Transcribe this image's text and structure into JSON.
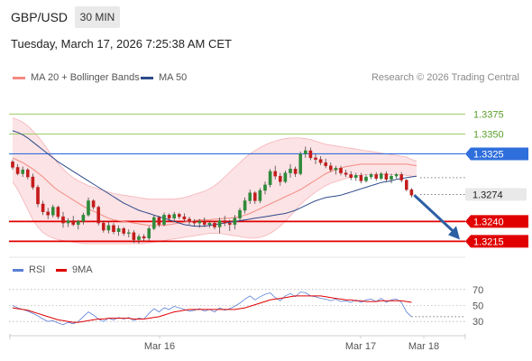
{
  "header": {
    "symbol": "GBP/USD",
    "timeframe": "30 MIN",
    "datetime": "Tuesday, March 17, 2026 7:25:38 AM CET"
  },
  "legend": {
    "items": [
      {
        "label": "MA 20 + Bollinger Bands",
        "color": "#f28b82"
      },
      {
        "label": "MA 50",
        "color": "#2e4a8a"
      }
    ],
    "credit": "Research © 2026 Trading Central"
  },
  "rsi_legend": {
    "items": [
      {
        "label": "RSI",
        "color": "#5b7fd6"
      },
      {
        "label": "9MA",
        "color": "#e00000"
      }
    ]
  },
  "chart_data": [
    {
      "type": "candlestick",
      "ylim": [
        1.3195,
        1.3405
      ],
      "x_labels": [
        "Mar 16",
        "Mar 17",
        "Mar 18"
      ],
      "levels": [
        {
          "value": 1.3375,
          "label": "1.3375",
          "style": "green-line"
        },
        {
          "value": 1.335,
          "label": "1.3350",
          "style": "green-line"
        },
        {
          "value": 1.3325,
          "label": "1.3325",
          "style": "blue-badge"
        },
        {
          "value": 1.3274,
          "label": "1.3274",
          "style": "current-price"
        },
        {
          "value": 1.324,
          "label": "1.3240",
          "style": "red-badge"
        },
        {
          "value": 1.3215,
          "label": "1.3215",
          "style": "red-badge"
        }
      ],
      "projection": {
        "from": 1.3273,
        "to": 1.3215
      },
      "ma20": [
        1.332,
        1.3317,
        1.3314,
        1.331,
        1.3306,
        1.3301,
        1.3296,
        1.329,
        1.3284,
        1.3279,
        1.3275,
        1.3271,
        1.3267,
        1.3263,
        1.3259,
        1.3256,
        1.3253,
        1.325,
        1.3247,
        1.3244,
        1.3242,
        1.3241,
        1.324,
        1.3239,
        1.3238,
        1.3237,
        1.3236,
        1.3235,
        1.3235,
        1.3235,
        1.3235,
        1.3236,
        1.3237,
        1.3238,
        1.3239,
        1.324,
        1.3241,
        1.3242,
        1.3242,
        1.3242,
        1.3243,
        1.3243,
        1.3244,
        1.3244,
        1.3245,
        1.3246,
        1.3248,
        1.325,
        1.3253,
        1.3256,
        1.3259,
        1.3262,
        1.3265,
        1.3268,
        1.3271,
        1.3274,
        1.3277,
        1.328,
        1.3284,
        1.3288,
        1.3292,
        1.3296,
        1.33,
        1.3303,
        1.3305,
        1.3307,
        1.3309,
        1.331,
        1.3311,
        1.3312,
        1.3312,
        1.3312,
        1.3312,
        1.3312,
        1.3312,
        1.3312,
        1.3312,
        1.3312,
        1.3312,
        1.3311,
        1.331
      ],
      "ma50": [
        1.3354,
        1.3352,
        1.3349,
        1.3345,
        1.334,
        1.3335,
        1.333,
        1.3325,
        1.332,
        1.3315,
        1.3311,
        1.3307,
        1.3303,
        1.3299,
        1.3295,
        1.3291,
        1.3287,
        1.3283,
        1.3279,
        1.3275,
        1.3271,
        1.3267,
        1.3263,
        1.326,
        1.3257,
        1.3254,
        1.3252,
        1.325,
        1.3248,
        1.3246,
        1.3244,
        1.3242,
        1.324,
        1.3238,
        1.3236,
        1.3235,
        1.3234,
        1.3234,
        1.3234,
        1.3235,
        1.3236,
        1.3237,
        1.3238,
        1.3239,
        1.324,
        1.3241,
        1.3242,
        1.3243,
        1.3244,
        1.3245,
        1.3246,
        1.3247,
        1.3248,
        1.3249,
        1.325,
        1.3252,
        1.3254,
        1.3257,
        1.326,
        1.3263,
        1.3266,
        1.3268,
        1.327,
        1.3271,
        1.3272,
        1.3273,
        1.3275,
        1.3277,
        1.3279,
        1.3281,
        1.3283,
        1.3285,
        1.3287,
        1.3289,
        1.329,
        1.3291,
        1.3293,
        1.3294,
        1.3295,
        1.3296,
        1.3297
      ],
      "bb_upper": [
        1.337,
        1.3368,
        1.3365,
        1.336,
        1.3354,
        1.3347,
        1.3339,
        1.333,
        1.3321,
        1.3313,
        1.3306,
        1.33,
        1.3295,
        1.3291,
        1.3288,
        1.3285,
        1.3283,
        1.3281,
        1.3279,
        1.3277,
        1.3275,
        1.3274,
        1.3273,
        1.3272,
        1.3271,
        1.327,
        1.3269,
        1.3268,
        1.3268,
        1.3268,
        1.3268,
        1.3268,
        1.3268,
        1.3269,
        1.327,
        1.3272,
        1.3274,
        1.3276,
        1.3278,
        1.3281,
        1.3285,
        1.329,
        1.3296,
        1.3302,
        1.3308,
        1.3314,
        1.332,
        1.3325,
        1.3329,
        1.3333,
        1.3336,
        1.3339,
        1.3341,
        1.3343,
        1.3344,
        1.3345,
        1.3345,
        1.3345,
        1.3344,
        1.3343,
        1.3341,
        1.3339,
        1.3337,
        1.3336,
        1.3335,
        1.3334,
        1.3333,
        1.3332,
        1.3331,
        1.333,
        1.3329,
        1.3328,
        1.3327,
        1.3326,
        1.3325,
        1.3324,
        1.3323,
        1.3322,
        1.3321,
        1.3318,
        1.3316
      ],
      "bb_lower": [
        1.329,
        1.328,
        1.3268,
        1.3255,
        1.3242,
        1.3233,
        1.3226,
        1.3222,
        1.3219,
        1.3217,
        1.3216,
        1.3215,
        1.3214,
        1.3213,
        1.3212,
        1.3212,
        1.3212,
        1.3212,
        1.3212,
        1.3212,
        1.3212,
        1.3212,
        1.3212,
        1.3212,
        1.3212,
        1.3212,
        1.3212,
        1.3213,
        1.3214,
        1.3215,
        1.3216,
        1.3217,
        1.3218,
        1.3219,
        1.322,
        1.3221,
        1.3222,
        1.3223,
        1.3224,
        1.3225,
        1.3225,
        1.3225,
        1.3224,
        1.3223,
        1.3222,
        1.3221,
        1.322,
        1.3219,
        1.3219,
        1.322,
        1.3222,
        1.3225,
        1.3229,
        1.3234,
        1.324,
        1.3247,
        1.3254,
        1.3261,
        1.3267,
        1.3272,
        1.3277,
        1.3281,
        1.3285,
        1.3288,
        1.329,
        1.3292,
        1.3294,
        1.3296,
        1.3297,
        1.3298,
        1.3299,
        1.3299,
        1.3299,
        1.3299,
        1.3299,
        1.3299,
        1.3299,
        1.3299,
        1.3298,
        1.3297,
        1.3296
      ],
      "ohlc": [
        [
          1.3315,
          1.3318,
          1.3305,
          1.3308
        ],
        [
          1.3308,
          1.3312,
          1.3298,
          1.33
        ],
        [
          1.33,
          1.3309,
          1.3296,
          1.3305
        ],
        [
          1.3305,
          1.3307,
          1.3293,
          1.3296
        ],
        [
          1.3296,
          1.33,
          1.328,
          1.3283
        ],
        [
          1.3283,
          1.3286,
          1.3258,
          1.3262
        ],
        [
          1.3262,
          1.3266,
          1.3248,
          1.3252
        ],
        [
          1.3252,
          1.3257,
          1.3243,
          1.3248
        ],
        [
          1.3248,
          1.3261,
          1.3245,
          1.3258
        ],
        [
          1.3258,
          1.326,
          1.3243,
          1.3246
        ],
        [
          1.3246,
          1.3252,
          1.3232,
          1.3238
        ],
        [
          1.3238,
          1.3244,
          1.3233,
          1.3241
        ],
        [
          1.3241,
          1.3247,
          1.3234,
          1.3236
        ],
        [
          1.3236,
          1.3242,
          1.323,
          1.324
        ],
        [
          1.324,
          1.3251,
          1.3236,
          1.3248
        ],
        [
          1.3248,
          1.327,
          1.3246,
          1.3266
        ],
        [
          1.3266,
          1.3268,
          1.3255,
          1.3258
        ],
        [
          1.3258,
          1.326,
          1.3235,
          1.3238
        ],
        [
          1.3238,
          1.3241,
          1.3226,
          1.3229
        ],
        [
          1.3229,
          1.324,
          1.3225,
          1.3235
        ],
        [
          1.3235,
          1.3238,
          1.3224,
          1.3227
        ],
        [
          1.3227,
          1.3235,
          1.3222,
          1.3231
        ],
        [
          1.3231,
          1.3233,
          1.3222,
          1.3225
        ],
        [
          1.3225,
          1.323,
          1.322,
          1.3226
        ],
        [
          1.3226,
          1.3229,
          1.3213,
          1.3217
        ],
        [
          1.3217,
          1.3224,
          1.3212,
          1.3221
        ],
        [
          1.3221,
          1.3224,
          1.3215,
          1.3219
        ],
        [
          1.3219,
          1.3234,
          1.3216,
          1.3231
        ],
        [
          1.3231,
          1.3248,
          1.3229,
          1.3245
        ],
        [
          1.3245,
          1.3247,
          1.3233,
          1.3236
        ],
        [
          1.3236,
          1.3251,
          1.3234,
          1.3248
        ],
        [
          1.3248,
          1.325,
          1.3241,
          1.3244
        ],
        [
          1.3244,
          1.3252,
          1.324,
          1.3249
        ],
        [
          1.3249,
          1.3251,
          1.3243,
          1.3246
        ],
        [
          1.3246,
          1.325,
          1.324,
          1.3243
        ],
        [
          1.3243,
          1.3246,
          1.3236,
          1.324
        ],
        [
          1.324,
          1.3243,
          1.3234,
          1.3238
        ],
        [
          1.3238,
          1.3243,
          1.3232,
          1.324
        ],
        [
          1.324,
          1.3245,
          1.3233,
          1.3236
        ],
        [
          1.3236,
          1.324,
          1.3232,
          1.3238
        ],
        [
          1.3238,
          1.324,
          1.323,
          1.3233
        ],
        [
          1.3233,
          1.3245,
          1.3225,
          1.3241
        ],
        [
          1.3241,
          1.3247,
          1.3234,
          1.3238
        ],
        [
          1.3238,
          1.3242,
          1.3228,
          1.3236
        ],
        [
          1.3236,
          1.3248,
          1.323,
          1.3244
        ],
        [
          1.3244,
          1.3257,
          1.324,
          1.3254
        ],
        [
          1.3254,
          1.327,
          1.325,
          1.3266
        ],
        [
          1.3266,
          1.328,
          1.3262,
          1.3276
        ],
        [
          1.3276,
          1.3278,
          1.3262,
          1.3266
        ],
        [
          1.3266,
          1.3282,
          1.3263,
          1.3279
        ],
        [
          1.3279,
          1.329,
          1.3274,
          1.3286
        ],
        [
          1.3286,
          1.3306,
          1.3283,
          1.3303
        ],
        [
          1.3303,
          1.331,
          1.3293,
          1.3297
        ],
        [
          1.3297,
          1.3301,
          1.3285,
          1.329
        ],
        [
          1.329,
          1.3304,
          1.3288,
          1.3301
        ],
        [
          1.3301,
          1.3312,
          1.3295,
          1.3306
        ],
        [
          1.3306,
          1.3309,
          1.3296,
          1.33
        ],
        [
          1.33,
          1.3328,
          1.3298,
          1.3325
        ],
        [
          1.3325,
          1.3334,
          1.332,
          1.3329
        ],
        [
          1.3329,
          1.3333,
          1.3317,
          1.332
        ],
        [
          1.332,
          1.3325,
          1.3312,
          1.3318
        ],
        [
          1.3318,
          1.3322,
          1.3311,
          1.3314
        ],
        [
          1.3314,
          1.3319,
          1.3307,
          1.331
        ],
        [
          1.331,
          1.3314,
          1.3302,
          1.3305
        ],
        [
          1.3305,
          1.331,
          1.3299,
          1.3307
        ],
        [
          1.3307,
          1.331,
          1.3298,
          1.3301
        ],
        [
          1.3301,
          1.3305,
          1.3296,
          1.3299
        ],
        [
          1.3299,
          1.3303,
          1.3292,
          1.3295
        ],
        [
          1.3295,
          1.3301,
          1.3291,
          1.3298
        ],
        [
          1.3298,
          1.3301,
          1.3288,
          1.3291
        ],
        [
          1.3291,
          1.3299,
          1.3289,
          1.3296
        ],
        [
          1.3296,
          1.3301,
          1.3293,
          1.3299
        ],
        [
          1.3299,
          1.3302,
          1.3291,
          1.3294
        ],
        [
          1.3294,
          1.3302,
          1.3292,
          1.33
        ],
        [
          1.33,
          1.3303,
          1.329,
          1.3293
        ],
        [
          1.3293,
          1.33,
          1.3288,
          1.3297
        ],
        [
          1.3297,
          1.3301,
          1.3294,
          1.3299
        ],
        [
          1.3299,
          1.3302,
          1.3289,
          1.3292
        ],
        [
          1.3292,
          1.3293,
          1.3278,
          1.328
        ],
        [
          1.328,
          1.3282,
          1.327,
          1.3273
        ]
      ]
    },
    {
      "type": "line",
      "series": [
        {
          "name": "RSI"
        },
        {
          "name": "9MA"
        }
      ],
      "ylim": [
        20,
        80
      ],
      "y_ticks": [
        70,
        50,
        30
      ],
      "rsi": [
        50,
        47,
        45,
        43,
        40,
        37,
        33,
        30,
        31,
        28,
        26,
        29,
        27,
        30,
        36,
        42,
        38,
        33,
        30,
        34,
        32,
        35,
        33,
        35,
        31,
        34,
        33,
        40,
        46,
        42,
        47,
        45,
        49,
        47,
        45,
        43,
        44,
        46,
        43,
        45,
        42,
        47,
        44,
        46,
        49,
        53,
        58,
        62,
        57,
        61,
        64,
        66,
        60,
        56,
        62,
        65,
        61,
        67,
        66,
        62,
        61,
        59,
        58,
        56,
        58,
        55,
        56,
        54,
        57,
        54,
        57,
        58,
        55,
        59,
        54,
        57,
        58,
        54,
        42,
        36
      ],
      "rsi_ma9": [
        47,
        46,
        45,
        44,
        42,
        40,
        38,
        36,
        34,
        32,
        31,
        30,
        29,
        29,
        30,
        31,
        32,
        33,
        33,
        34,
        34,
        34,
        34,
        34,
        33,
        33,
        33,
        34,
        35,
        36,
        38,
        40,
        42,
        43,
        44,
        45,
        45,
        45,
        45,
        45,
        45,
        45,
        45,
        45,
        45,
        46,
        47,
        49,
        51,
        53,
        55,
        57,
        58,
        59,
        60,
        61,
        62,
        62,
        62,
        62,
        62,
        62,
        61,
        60,
        59,
        58,
        57,
        57,
        56,
        56,
        55,
        55,
        55,
        56,
        56,
        56,
        56,
        56,
        55,
        54
      ]
    }
  ]
}
